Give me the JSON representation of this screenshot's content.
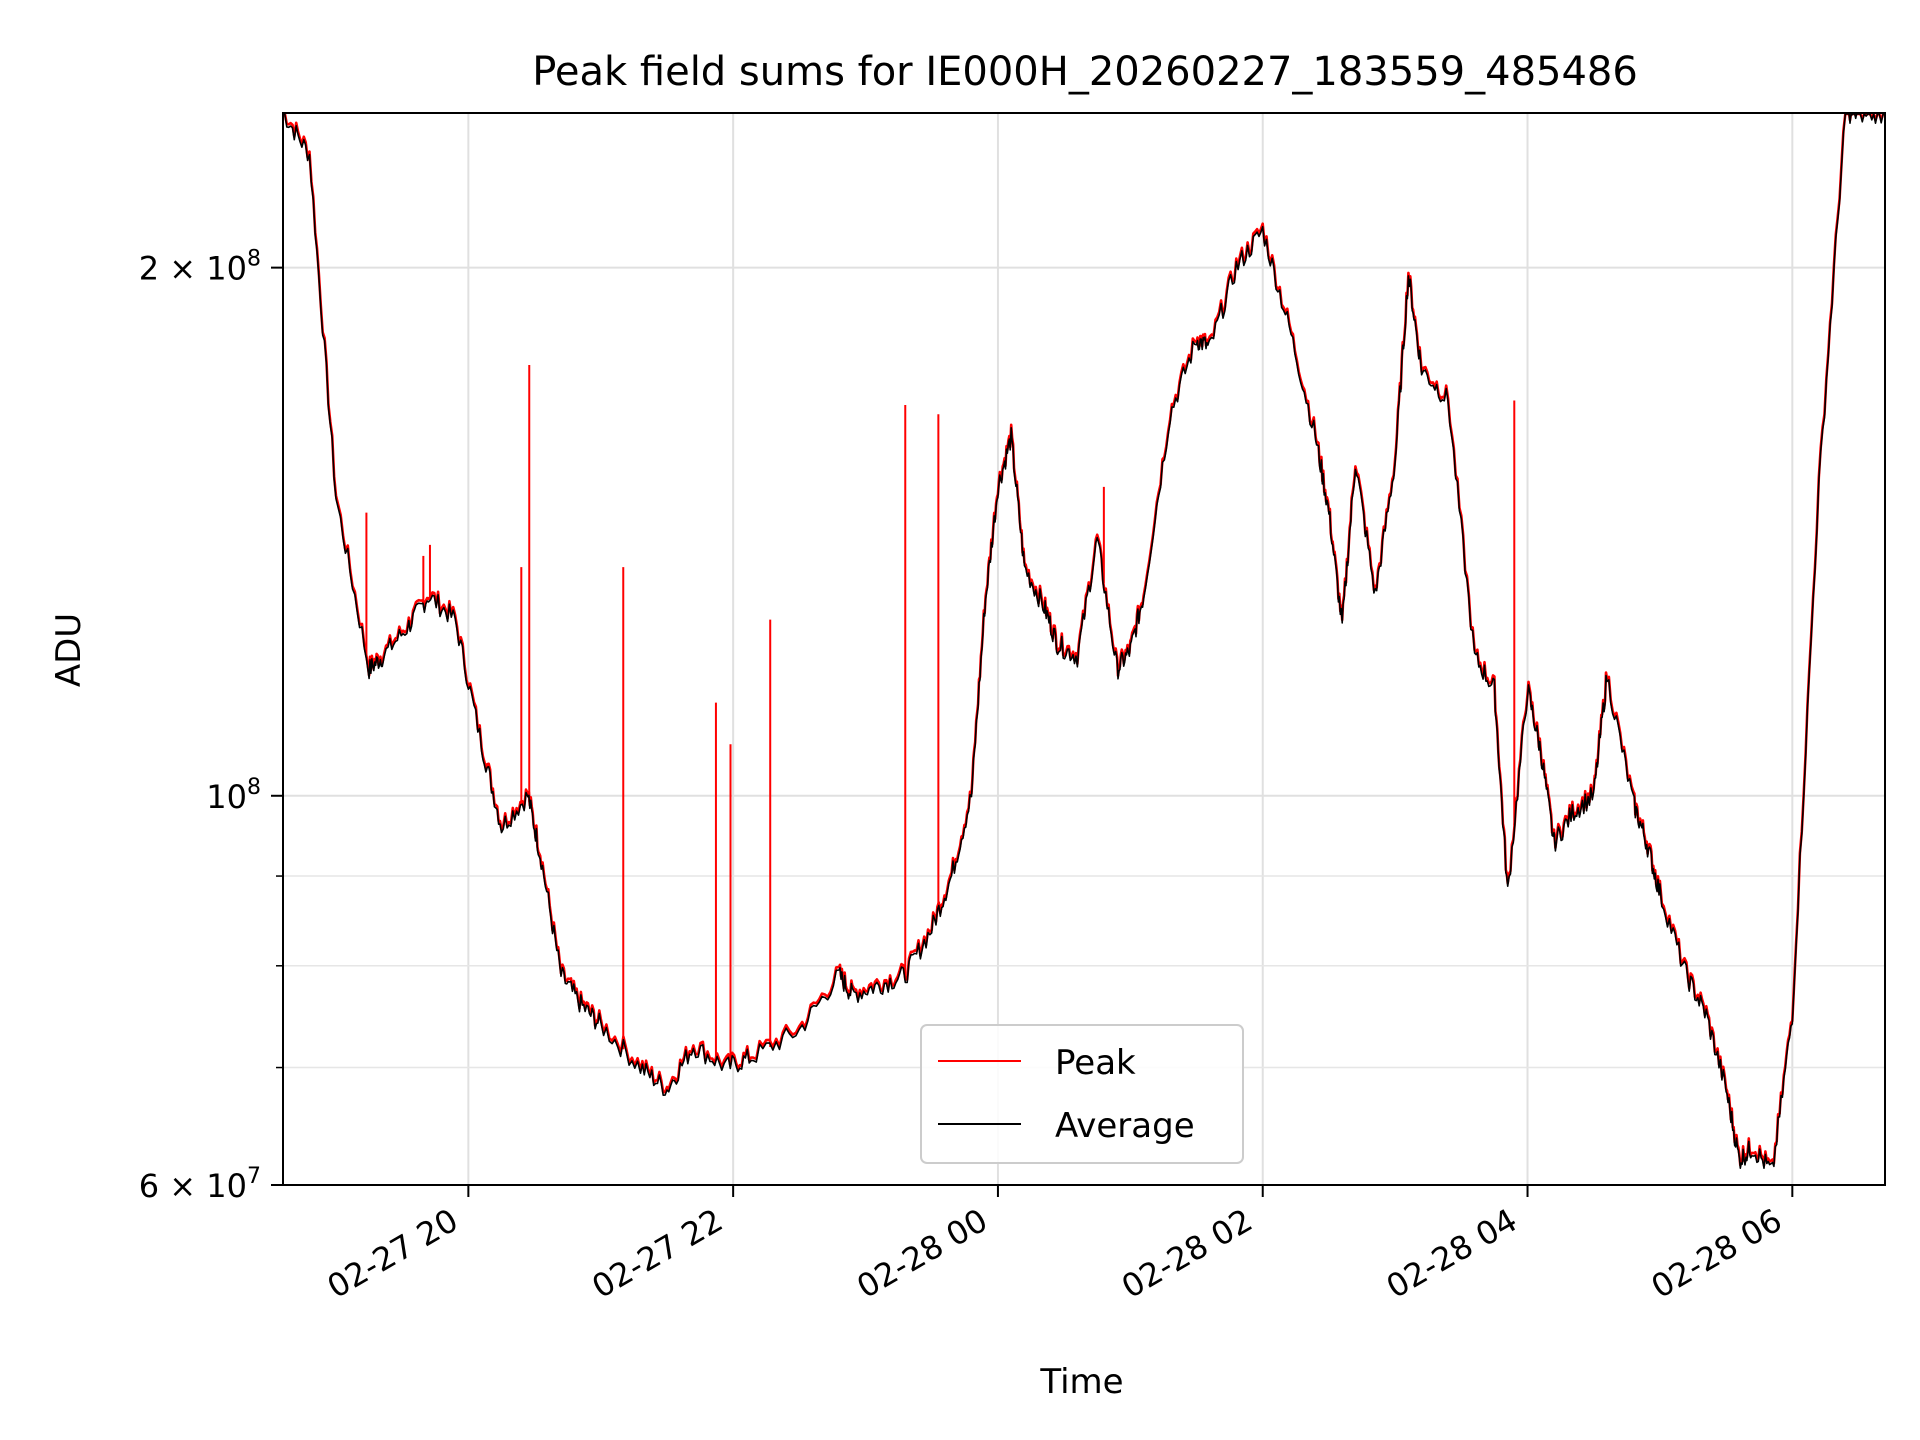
{
  "chart_data": {
    "type": "line",
    "title": "Peak field sums for IE000H_20260227_183559_485486",
    "xlabel": "Time",
    "ylabel": "ADU",
    "yscale": "log",
    "ylim": [
      60000000,
      245000000
    ],
    "xlim_hours": [
      18.6,
      30.7
    ],
    "grid": true,
    "legend_position": "lower center",
    "x_ticks": [
      {
        "hour": 20,
        "label": "02-27 20"
      },
      {
        "hour": 22,
        "label": "02-27 22"
      },
      {
        "hour": 24,
        "label": "02-28 00"
      },
      {
        "hour": 26,
        "label": "02-28 02"
      },
      {
        "hour": 28,
        "label": "02-28 04"
      },
      {
        "hour": 30,
        "label": "02-28 06"
      }
    ],
    "y_ticks_major": [
      {
        "value": 60000000,
        "mantissa": "6",
        "exp": "7"
      },
      {
        "value": 100000000,
        "mantissa": "",
        "exp": "8"
      },
      {
        "value": 200000000,
        "mantissa": "2",
        "exp": "8"
      }
    ],
    "y_ticks_minor": [
      70000000,
      80000000,
      90000000
    ],
    "series": [
      {
        "name": "Peak",
        "color": "#ff0000"
      },
      {
        "name": "Average",
        "color": "#000000"
      }
    ],
    "average_x_hours": [
      18.6,
      18.8,
      19.0,
      19.25,
      19.35,
      19.55,
      19.7,
      19.9,
      20.1,
      20.25,
      20.45,
      20.55,
      20.7,
      20.85,
      21.0,
      21.3,
      21.5,
      21.7,
      21.95,
      22.15,
      22.5,
      22.8,
      22.9,
      23.1,
      23.3,
      23.5,
      23.65,
      23.8,
      23.9,
      24.0,
      24.1,
      24.2,
      24.35,
      24.45,
      24.6,
      24.75,
      24.9,
      25.0,
      25.1,
      25.3,
      25.5,
      25.6,
      25.8,
      26.0,
      26.2,
      26.4,
      26.5,
      26.6,
      26.7,
      26.85,
      27.0,
      27.1,
      27.2,
      27.4,
      27.6,
      27.75,
      27.85,
      28.0,
      28.1,
      28.2,
      28.35,
      28.5,
      28.6,
      28.8,
      28.9,
      29.0,
      29.2,
      29.35,
      29.5,
      29.6,
      29.7,
      29.85,
      30.0,
      30.2,
      30.4,
      30.5,
      30.7
    ],
    "average_values": [
      245000000,
      232000000,
      148000000,
      118000000,
      120000000,
      125000000,
      130000000,
      126000000,
      107000000,
      96000000,
      100000000,
      92000000,
      79000000,
      76000000,
      74000000,
      70000000,
      68000000,
      72000000,
      70000000,
      71000000,
      73500000,
      79000000,
      77000000,
      78000000,
      79000000,
      84000000,
      90000000,
      100000000,
      128000000,
      150000000,
      160000000,
      135000000,
      128000000,
      122000000,
      120000000,
      140000000,
      118000000,
      121000000,
      130000000,
      165000000,
      182000000,
      180000000,
      200000000,
      210000000,
      185000000,
      160000000,
      145000000,
      125000000,
      155000000,
      130000000,
      155000000,
      198000000,
      175000000,
      168000000,
      120000000,
      115000000,
      88000000,
      115000000,
      106000000,
      94000000,
      98000000,
      100000000,
      117000000,
      99000000,
      94000000,
      88000000,
      79000000,
      75000000,
      68000000,
      62000000,
      63000000,
      61000000,
      75000000,
      150000000,
      245000000,
      245000000,
      245000000
    ],
    "peak_spikes": [
      {
        "hour": 19.23,
        "value": 145000000
      },
      {
        "hour": 19.66,
        "value": 137000000
      },
      {
        "hour": 19.71,
        "value": 139000000
      },
      {
        "hour": 20.4,
        "value": 135000000
      },
      {
        "hour": 20.46,
        "value": 176000000
      },
      {
        "hour": 21.17,
        "value": 135000000
      },
      {
        "hour": 21.87,
        "value": 113000000
      },
      {
        "hour": 21.98,
        "value": 107000000
      },
      {
        "hour": 22.28,
        "value": 126000000
      },
      {
        "hour": 23.3,
        "value": 167000000
      },
      {
        "hour": 23.55,
        "value": 165000000
      },
      {
        "hour": 24.8,
        "value": 150000000
      },
      {
        "hour": 27.9,
        "value": 168000000
      }
    ]
  }
}
